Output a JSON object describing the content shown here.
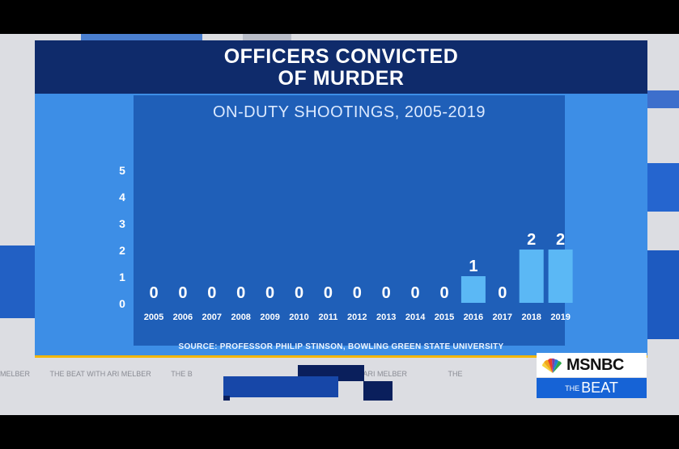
{
  "graphic": {
    "title_line1": "OFFICERS CONVICTED",
    "title_line2": "OF MURDER",
    "subtitle": "ON-DUTY SHOOTINGS, 2005-2019",
    "source": "SOURCE: PROFESSOR PHILIP STINSON, BOWLING GREEN STATE UNIVERSITY"
  },
  "logo": {
    "network": "MSNBC",
    "show_prefix": "THE",
    "show_name": "BEAT",
    "icon": "peacock-icon"
  },
  "ticker": {
    "items": [
      "MELBER",
      "THE BEAT WITH ARI MELBER",
      "THE B",
      "BEAT WITH ARI MELBER",
      "THE"
    ]
  },
  "colors": {
    "panel_blue": "#3d8ee6",
    "plot_blue": "#1f5fb8",
    "title_navy": "#0f2b6b",
    "bar_light": "#5bb8f5",
    "accent_gold": "#f2b705"
  },
  "chart_data": {
    "type": "bar",
    "title": "OFFICERS CONVICTED OF MURDER",
    "subtitle": "ON-DUTY SHOOTINGS, 2005-2019",
    "categories": [
      "2005",
      "2006",
      "2007",
      "2008",
      "2009",
      "2010",
      "2011",
      "2012",
      "2013",
      "2014",
      "2015",
      "2016",
      "2017",
      "2018",
      "2019"
    ],
    "values": [
      0,
      0,
      0,
      0,
      0,
      0,
      0,
      0,
      0,
      0,
      0,
      1,
      0,
      2,
      2
    ],
    "value_labels": [
      "0",
      "0",
      "0",
      "0",
      "0",
      "0",
      "0",
      "0",
      "0",
      "0",
      "0",
      "1",
      "0",
      "2",
      "2"
    ],
    "yticks": [
      "0",
      "1",
      "2",
      "3",
      "4",
      "5"
    ],
    "ylim": [
      0,
      5
    ],
    "grid": false,
    "legend": "none"
  }
}
